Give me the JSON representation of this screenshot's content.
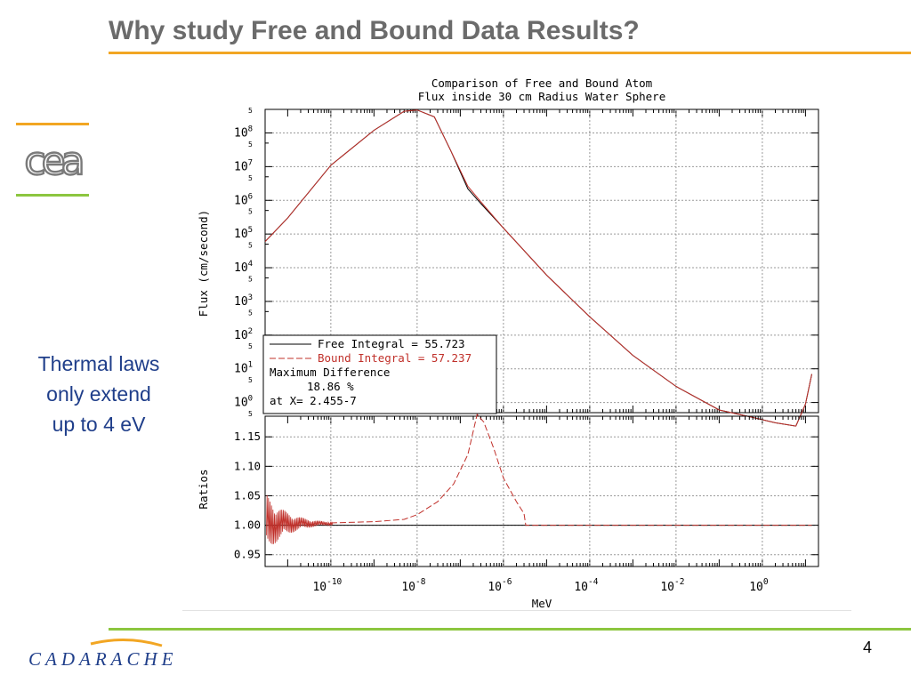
{
  "slide": {
    "title": "Why study Free and Bound Data Results?",
    "side_text": [
      "Thermal laws",
      "only extend",
      "up to 4 eV"
    ],
    "page_number": "4",
    "footer_logo_text": "CADARACHE",
    "brand_logo_text": "cea"
  },
  "colors": {
    "title": "#6b6b6b",
    "title_rule": "#f2a623",
    "footer_rule": "#8cc63f",
    "side_text": "#1f3e8a",
    "free_line": "#000000",
    "bound_line": "#c0302a",
    "grid": "#9a9a9a"
  },
  "chart_data": [
    {
      "type": "line",
      "title": "Comparison of Free and Bound Atom",
      "subtitle": "Flux inside 30 cm Radius Water Sphere",
      "ylabel": "Flux (cm/second)",
      "xlabel": "",
      "xscale": "log",
      "yscale": "log",
      "xlim": [
        3e-12,
        20
      ],
      "ylim": [
        0.5,
        500000000.0
      ],
      "grid": true,
      "y_ticks": [
        "10^0",
        "10^1",
        "10^2",
        "10^3",
        "10^4",
        "10^5",
        "10^6",
        "10^7",
        "10^8"
      ],
      "y_minor_label": "5",
      "legend": {
        "placement": "bottom-left",
        "entries": [
          {
            "label": "Free   Integral = 55.723",
            "style": "solid"
          },
          {
            "label": "Bound Integral = 57.237",
            "style": "dashed"
          }
        ],
        "notes": [
          "Maximum Difference",
          "18.86 %",
          "at X= 2.455-7"
        ]
      },
      "series": [
        {
          "name": "Free",
          "points": [
            [
              3e-12,
              60000.0
            ],
            [
              1e-11,
              300000.0
            ],
            [
              1e-10,
              11000000.0
            ],
            [
              1e-09,
              120000000.0
            ],
            [
              5e-09,
              440000000.0
            ],
            [
              1e-08,
              480000000.0
            ],
            [
              2.5e-08,
              300000000.0
            ],
            [
              6e-08,
              30000000.0
            ],
            [
              1.5e-07,
              2200000.0
            ],
            [
              3e-07,
              800000.0
            ],
            [
              1e-06,
              150000.0
            ],
            [
              1e-05,
              6000.0
            ],
            [
              0.0001,
              350
            ],
            [
              0.001,
              25
            ],
            [
              0.01,
              3
            ],
            [
              0.1,
              0.6
            ],
            [
              0.5,
              0.38
            ],
            [
              2,
              0.25
            ],
            [
              6,
              0.2
            ],
            [
              10,
              0.9
            ],
            [
              14,
              7
            ]
          ]
        },
        {
          "name": "Bound",
          "points": [
            [
              3e-12,
              60000.0
            ],
            [
              1e-11,
              300000.0
            ],
            [
              1e-10,
              11000000.0
            ],
            [
              1e-09,
              120000000.0
            ],
            [
              5e-09,
              440000000.0
            ],
            [
              1e-08,
              480000000.0
            ],
            [
              2.5e-08,
              300000000.0
            ],
            [
              6e-08,
              30000000.0
            ],
            [
              1.5e-07,
              2600000.0
            ],
            [
              3e-07,
              900000.0
            ],
            [
              1e-06,
              150000.0
            ],
            [
              1e-05,
              6000.0
            ],
            [
              0.0001,
              350
            ],
            [
              0.001,
              25
            ],
            [
              0.01,
              3
            ],
            [
              0.1,
              0.6
            ],
            [
              0.5,
              0.38
            ],
            [
              2,
              0.25
            ],
            [
              6,
              0.2
            ],
            [
              10,
              0.9
            ],
            [
              14,
              7
            ]
          ]
        }
      ]
    },
    {
      "type": "line",
      "title": "",
      "ylabel": "Ratios",
      "xlabel": "MeV",
      "xscale": "log",
      "yscale": "linear",
      "xlim": [
        3e-12,
        20
      ],
      "ylim": [
        0.93,
        1.185
      ],
      "grid": true,
      "x_ticks": [
        {
          "v": 1e-10,
          "m": "10",
          "e": "-10"
        },
        {
          "v": 1e-08,
          "m": "10",
          "e": "-8"
        },
        {
          "v": 1e-06,
          "m": "10",
          "e": "-6"
        },
        {
          "v": 0.0001,
          "m": "10",
          "e": "-4"
        },
        {
          "v": 0.01,
          "m": "10",
          "e": "-2"
        },
        {
          "v": 1,
          "m": "10",
          "e": "0"
        }
      ],
      "y_ticks": [
        "1.15",
        "1.10",
        "1.05",
        "1.00",
        "0.95"
      ],
      "series": [
        {
          "name": "Free",
          "points": [
            [
              3e-12,
              1.0
            ],
            [
              14,
              1.0
            ]
          ]
        },
        {
          "name": "Bound",
          "points": [
            [
              1e-10,
              1.004
            ],
            [
              1e-09,
              1.006
            ],
            [
              5e-09,
              1.01
            ],
            [
              1e-08,
              1.018
            ],
            [
              3e-08,
              1.04
            ],
            [
              7e-08,
              1.07
            ],
            [
              1.5e-07,
              1.12
            ],
            [
              2.455e-07,
              1.188
            ],
            [
              3.5e-07,
              1.175
            ],
            [
              6e-07,
              1.13
            ],
            [
              1e-06,
              1.08
            ],
            [
              2e-06,
              1.04
            ],
            [
              3e-06,
              1.02
            ],
            [
              3.3e-06,
              1.0
            ],
            [
              14,
              1.0
            ]
          ]
        }
      ]
    }
  ]
}
